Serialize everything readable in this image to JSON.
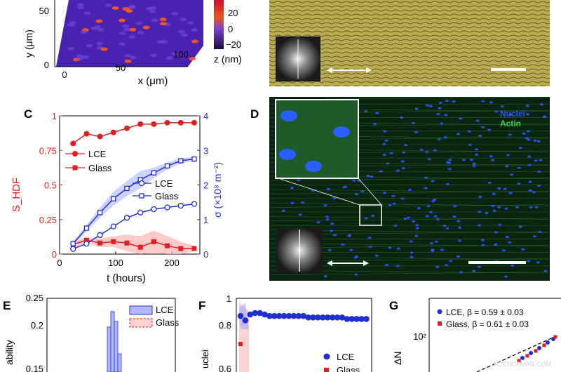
{
  "panel_letters": {
    "c": "C",
    "d": "D",
    "e": "E",
    "f": "F",
    "g": "G"
  },
  "panel_a": {
    "y_label": "y (μm)",
    "x_label": "x (μm)",
    "y_ticks": [
      "0",
      "50"
    ],
    "x_ticks": [
      "0",
      "50",
      "100"
    ],
    "colorbar_ticks": [
      "20",
      "0",
      "−20"
    ],
    "colorbar_label": "z (nm)",
    "colors": {
      "low": "#1b0b4d",
      "mid": "#6a3cd6",
      "high": "#ff2a1a"
    }
  },
  "panel_d": {
    "legend": {
      "nuclei": "Nuclei",
      "actin": "Actin"
    },
    "colors": {
      "nuclei": "#2a53ff",
      "actin": "#3fd04a",
      "background": "#0b2410"
    }
  },
  "panel_c": {
    "left_label": "S_HDF",
    "right_label": "σ (×10⁸ m⁻²)",
    "x_label": "t (hours)",
    "left_ticks": [
      "0",
      "0.25",
      "0.5",
      "0.75",
      "1"
    ],
    "right_ticks": [
      "0",
      "1",
      "2",
      "3",
      "4"
    ],
    "x_ticks": [
      "0",
      "100",
      "200"
    ],
    "legend_left": [
      "LCE",
      "Glass"
    ],
    "legend_right": [
      "LCE",
      "Glass"
    ],
    "colors": {
      "red": "#e02020",
      "blue": "#1f2fd0"
    }
  },
  "panel_e": {
    "y_label_partial": "ability",
    "y_ticks": [
      "0.25",
      "0.2",
      "0.15"
    ],
    "legend": [
      "LCE",
      "Glass"
    ]
  },
  "panel_f": {
    "y_label_partial": "uclei",
    "y_ticks": [
      "1",
      "0.8",
      "0.6"
    ],
    "legend": [
      "LCE",
      "Glass"
    ]
  },
  "panel_g": {
    "y_label_partial": "ΔN",
    "y_tick": "10²",
    "legend": [
      "LCE, β = 0.59 ± 0.03",
      "Glass, β = 0.61 ± 0.03"
    ],
    "watermark": "SCIENCEMAG.COM"
  },
  "chart_data": [
    {
      "type": "line",
      "panel": "C",
      "xlabel": "t (hours)",
      "ylabel": "S_HDF",
      "ylabel_right": "σ (×10⁸ m⁻²)",
      "xlim": [
        0,
        250
      ],
      "ylim": [
        0,
        1
      ],
      "ylim_right": [
        0,
        4
      ],
      "series": [
        {
          "name": "LCE",
          "axis": "left",
          "marker": "circle",
          "color": "#e02020",
          "x": [
            24,
            48,
            72,
            96,
            120,
            144,
            168,
            192,
            216,
            240
          ],
          "y": [
            0.8,
            0.87,
            0.85,
            0.88,
            0.91,
            0.94,
            0.94,
            0.95,
            0.95,
            0.95
          ]
        },
        {
          "name": "Glass",
          "axis": "left",
          "marker": "square",
          "color": "#e02020",
          "x": [
            24,
            48,
            72,
            96,
            120,
            144,
            168,
            192,
            216,
            240
          ],
          "y": [
            0.07,
            0.1,
            0.08,
            0.09,
            0.08,
            0.05,
            0.09,
            0.06,
            0.04,
            0.04
          ]
        },
        {
          "name": "LCE",
          "axis": "right",
          "marker": "circle-open",
          "color": "#1f2fd0",
          "x": [
            24,
            48,
            72,
            96,
            120,
            144,
            168,
            192,
            216,
            240
          ],
          "y": [
            0.15,
            0.3,
            0.55,
            0.8,
            1.05,
            1.2,
            1.3,
            1.35,
            1.4,
            1.45
          ]
        },
        {
          "name": "Glass",
          "axis": "right",
          "marker": "square-open",
          "color": "#1f2fd0",
          "x": [
            24,
            48,
            72,
            96,
            120,
            144,
            168,
            192,
            216,
            240
          ],
          "y": [
            0.3,
            0.75,
            1.2,
            1.6,
            1.9,
            2.15,
            2.35,
            2.55,
            2.7,
            2.75
          ]
        }
      ]
    },
    {
      "type": "bar",
      "panel": "E",
      "ylabel": "ability",
      "ylim": [
        0.14,
        0.25
      ],
      "series": [
        {
          "name": "LCE",
          "values": [
            0.19,
            0.22,
            0.2,
            0.16
          ]
        }
      ]
    },
    {
      "type": "scatter",
      "panel": "F",
      "ylabel": "uclei",
      "ylim": [
        0.5,
        1
      ],
      "series": [
        {
          "name": "LCE",
          "color": "#1f2fd0",
          "y": [
            0.88,
            0.85,
            0.89,
            0.9,
            0.9,
            0.89,
            0.88,
            0.88,
            0.88,
            0.88,
            0.88,
            0.88,
            0.88,
            0.88,
            0.87,
            0.87,
            0.87,
            0.87,
            0.87,
            0.87,
            0.87,
            0.87,
            0.86,
            0.86,
            0.86,
            0.86,
            0.86
          ]
        },
        {
          "name": "Glass",
          "color": "#e02020",
          "y": [
            0.69
          ]
        }
      ]
    },
    {
      "type": "scatter",
      "panel": "G",
      "ylabel": "ΔN",
      "series": [
        {
          "name": "LCE, β = 0.59 ± 0.03",
          "color": "#1f2fd0"
        },
        {
          "name": "Glass, β = 0.61 ± 0.03",
          "color": "#e02020"
        }
      ]
    }
  ]
}
